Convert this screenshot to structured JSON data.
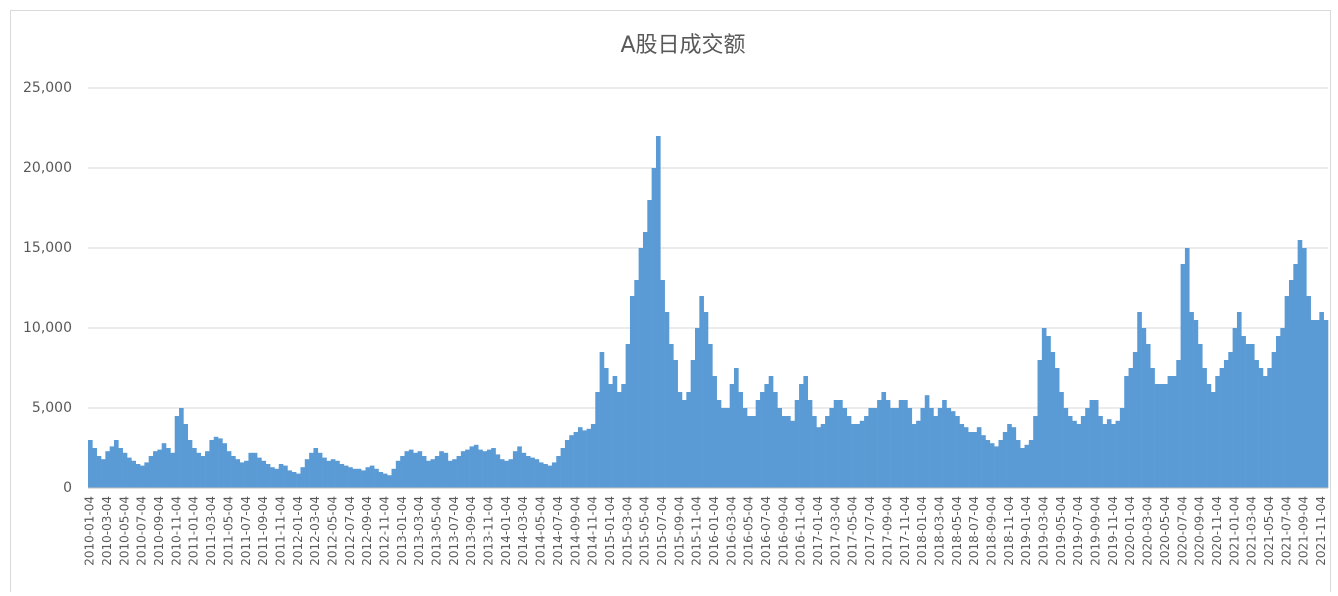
{
  "chart_data": {
    "type": "bar",
    "title": "A股日成交额",
    "color": "#5b9bd5",
    "grid": true,
    "ylim": [
      0,
      25000
    ],
    "yticks": [
      0,
      {
        "value": 5000,
        "label": "5,000"
      },
      {
        "value": 10000,
        "label": "10,000"
      },
      {
        "value": 15000,
        "label": "15,000"
      },
      {
        "value": 20000,
        "label": "20,000"
      },
      {
        "value": 25000,
        "label": "25,000"
      }
    ],
    "categories": [
      "2010-01-04",
      null,
      null,
      null,
      "2010-03-04",
      null,
      null,
      null,
      "2010-05-04",
      null,
      null,
      null,
      "2010-07-04",
      null,
      null,
      null,
      "2010-09-04",
      null,
      null,
      null,
      "2010-11-04",
      null,
      null,
      null,
      "2011-01-04",
      null,
      null,
      null,
      "2011-03-04",
      null,
      null,
      null,
      "2011-05-04",
      null,
      null,
      null,
      "2011-07-04",
      null,
      null,
      null,
      "2011-09-04",
      null,
      null,
      null,
      "2011-11-04",
      null,
      null,
      null,
      "2012-01-04",
      null,
      null,
      null,
      "2012-03-04",
      null,
      null,
      null,
      "2012-05-04",
      null,
      null,
      null,
      "2012-07-04",
      null,
      null,
      null,
      "2012-09-04",
      null,
      null,
      null,
      "2012-11-04",
      null,
      null,
      null,
      "2013-01-04",
      null,
      null,
      null,
      "2013-03-04",
      null,
      null,
      null,
      "2013-05-04",
      null,
      null,
      null,
      "2013-07-04",
      null,
      null,
      null,
      "2013-09-04",
      null,
      null,
      null,
      "2013-11-04",
      null,
      null,
      null,
      "2014-01-04",
      null,
      null,
      null,
      "2014-03-04",
      null,
      null,
      null,
      "2014-05-04",
      null,
      null,
      null,
      "2014-07-04",
      null,
      null,
      null,
      "2014-09-04",
      null,
      null,
      null,
      "2014-11-04",
      null,
      null,
      null,
      "2015-01-04",
      null,
      null,
      null,
      "2015-03-04",
      null,
      null,
      null,
      "2015-05-04",
      null,
      null,
      null,
      "2015-07-04",
      null,
      null,
      null,
      "2015-09-04",
      null,
      null,
      null,
      "2015-11-04",
      null,
      null,
      null,
      "2016-01-04",
      null,
      null,
      null,
      "2016-03-04",
      null,
      null,
      null,
      "2016-05-04",
      null,
      null,
      null,
      "2016-07-04",
      null,
      null,
      null,
      "2016-09-04",
      null,
      null,
      null,
      "2016-11-04",
      null,
      null,
      null,
      "2017-01-04",
      null,
      null,
      null,
      "2017-03-04",
      null,
      null,
      null,
      "2017-05-04",
      null,
      null,
      null,
      "2017-07-04",
      null,
      null,
      null,
      "2017-09-04",
      null,
      null,
      null,
      "2017-11-04",
      null,
      null,
      null,
      "2018-01-04",
      null,
      null,
      null,
      "2018-03-04",
      null,
      null,
      null,
      "2018-05-04",
      null,
      null,
      null,
      "2018-07-04",
      null,
      null,
      null,
      "2018-09-04",
      null,
      null,
      null,
      "2018-11-04",
      null,
      null,
      null,
      "2019-01-04",
      null,
      null,
      null,
      "2019-03-04",
      null,
      null,
      null,
      "2019-05-04",
      null,
      null,
      null,
      "2019-07-04",
      null,
      null,
      null,
      "2019-09-04",
      null,
      null,
      null,
      "2019-11-04",
      null,
      null,
      null,
      "2020-01-04",
      null,
      null,
      null,
      "2020-03-04",
      null,
      null,
      null,
      "2020-05-04",
      null,
      null,
      null,
      "2020-07-04",
      null,
      null,
      null,
      "2020-09-04",
      null,
      null,
      null,
      "2020-11-04",
      null,
      null,
      null,
      "2021-01-04",
      null,
      null,
      null,
      "2021-03-04",
      null,
      null,
      null,
      "2021-05-04",
      null,
      null,
      null,
      "2021-07-04",
      null,
      null,
      null,
      "2021-09-04",
      null,
      null,
      null,
      "2021-11-04",
      null
    ],
    "values": [
      3000,
      2500,
      2000,
      1800,
      2300,
      2600,
      3000,
      2500,
      2200,
      1900,
      1700,
      1500,
      1400,
      1600,
      2000,
      2300,
      2400,
      2800,
      2500,
      2200,
      4500,
      5000,
      4000,
      3000,
      2500,
      2200,
      2000,
      2300,
      3000,
      3200,
      3100,
      2800,
      2300,
      2000,
      1800,
      1600,
      1700,
      2200,
      2200,
      1900,
      1700,
      1500,
      1300,
      1200,
      1500,
      1400,
      1100,
      1000,
      900,
      1300,
      1800,
      2200,
      2500,
      2200,
      1900,
      1700,
      1800,
      1700,
      1500,
      1400,
      1300,
      1200,
      1200,
      1100,
      1300,
      1400,
      1200,
      1000,
      900,
      800,
      1200,
      1700,
      2000,
      2300,
      2400,
      2200,
      2300,
      2000,
      1700,
      1800,
      2000,
      2300,
      2200,
      1700,
      1800,
      2000,
      2300,
      2400,
      2600,
      2700,
      2400,
      2300,
      2400,
      2500,
      2100,
      1800,
      1700,
      1800,
      2300,
      2600,
      2200,
      2000,
      1900,
      1800,
      1600,
      1500,
      1400,
      1600,
      2000,
      2500,
      3000,
      3300,
      3500,
      3800,
      3600,
      3700,
      4000,
      6000,
      8500,
      7500,
      6500,
      7000,
      6000,
      6500,
      9000,
      12000,
      13000,
      15000,
      16000,
      18000,
      20000,
      22000,
      13000,
      11000,
      9000,
      8000,
      6000,
      5500,
      6000,
      8000,
      10000,
      12000,
      11000,
      9000,
      7000,
      5500,
      5000,
      5000,
      6500,
      7500,
      6000,
      5000,
      4500,
      4500,
      5500,
      6000,
      6500,
      7000,
      6000,
      5000,
      4500,
      4500,
      4200,
      5500,
      6500,
      7000,
      5500,
      4500,
      3800,
      4000,
      4500,
      5000,
      5500,
      5500,
      5000,
      4500,
      4000,
      4000,
      4200,
      4500,
      5000,
      5000,
      5500,
      6000,
      5500,
      5000,
      5000,
      5500,
      5500,
      5000,
      4000,
      4200,
      5000,
      5800,
      5000,
      4500,
      5000,
      5500,
      5000,
      4800,
      4500,
      4000,
      3800,
      3500,
      3500,
      3800,
      3300,
      3000,
      2800,
      2600,
      3000,
      3500,
      4000,
      3800,
      3000,
      2500,
      2700,
      3000,
      4500,
      8000,
      10000,
      9500,
      8500,
      7500,
      6000,
      5000,
      4500,
      4200,
      4000,
      4500,
      5000,
      5500,
      5500,
      4500,
      4000,
      4300,
      4000,
      4200,
      5000,
      7000,
      7500,
      8500,
      11000,
      10000,
      9000,
      7500,
      6500,
      6500,
      6500,
      7000,
      7000,
      8000,
      14000,
      15000,
      11000,
      10500,
      9000,
      7500,
      6500,
      6000,
      7000,
      7500,
      8000,
      8500,
      10000,
      11000,
      9500,
      9000,
      9000,
      8000,
      7500,
      7000,
      7500,
      8500,
      9500,
      10000,
      12000,
      13000,
      14000,
      15500,
      15000,
      12000,
      10500,
      10500,
      11000,
      10500
    ]
  }
}
